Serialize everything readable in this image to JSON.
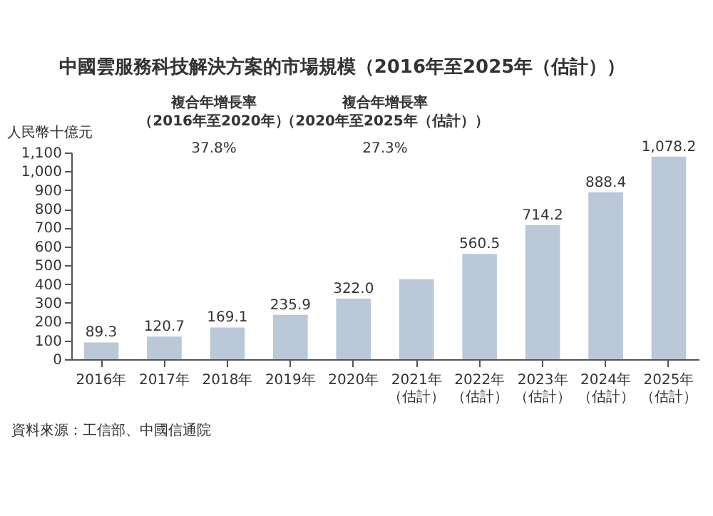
{
  "chart_data": {
    "type": "bar",
    "title": "中國雲服務科技解決方案的市場規模（2016年至2025年（估計））",
    "ylabel": "人民幣十億元",
    "categories": [
      "2016年",
      "2017年",
      "2018年",
      "2019年",
      "2020年",
      "2021年（估計）",
      "2022年（估計）",
      "2023年（估計）",
      "2024年（估計）",
      "2025年（估計）"
    ],
    "values": [
      89.3,
      120.7,
      169.1,
      235.9,
      322.0,
      426,
      560.5,
      714.2,
      888.4,
      1078.2
    ],
    "value_labels": [
      "89.3",
      "120.7",
      "169.1",
      "235.9",
      "322.0",
      null,
      "560.5",
      "714.2",
      "888.4",
      "1,078.2"
    ],
    "color": "#bac8d8",
    "ylim": [
      0,
      1100
    ],
    "yticks": [
      0,
      100,
      200,
      300,
      400,
      500,
      600,
      700,
      800,
      900,
      {
        "value": 1000,
        "label": "1,000"
      },
      {
        "value": 1100,
        "label": "1,100"
      }
    ],
    "grid": false,
    "annotations": [
      "複合年增長率",
      "（2016年至2020年）",
      "37.8%",
      "複合年增長率",
      "（2020年至2025年（估計））",
      "27.3%",
      "資料來源：工信部、中國信通院"
    ]
  }
}
